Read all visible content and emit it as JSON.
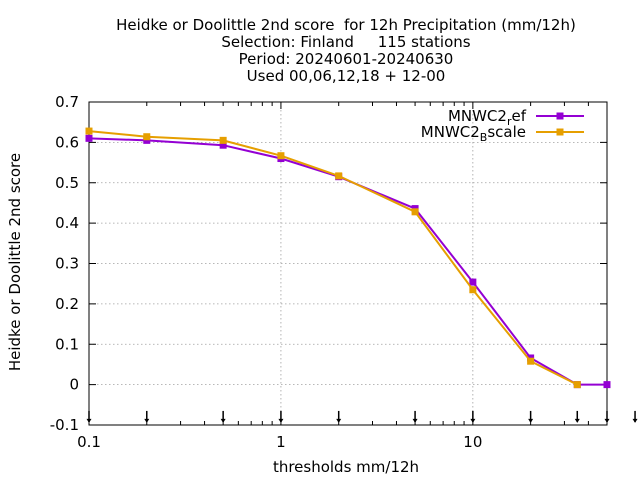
{
  "chart_data": {
    "type": "line",
    "title_lines": [
      "Heidke or Doolittle 2nd score  for 12h Precipitation (mm/12h)",
      "Selection: Finland     115 stations",
      "Period: 20240601-20240630",
      "Used 00,06,12,18 + 12-00"
    ],
    "xlabel": "thresholds mm/12h",
    "ylabel": "Heidke or Doolittle 2nd score",
    "xscale": "log",
    "xlim": [
      0.1,
      50
    ],
    "ylim": [
      -0.1,
      0.7
    ],
    "x_ticks": [
      {
        "value": 0.1,
        "label": "0.1"
      },
      {
        "value": 1,
        "label": "1"
      },
      {
        "value": 10,
        "label": "10"
      }
    ],
    "y_ticks": [
      {
        "value": -0.1,
        "label": "-0.1"
      },
      {
        "value": 0,
        "label": "0"
      },
      {
        "value": 0.1,
        "label": "0.1"
      },
      {
        "value": 0.2,
        "label": "0.2"
      },
      {
        "value": 0.3,
        "label": "0.3"
      },
      {
        "value": 0.4,
        "label": "0.4"
      },
      {
        "value": 0.5,
        "label": "0.5"
      },
      {
        "value": 0.6,
        "label": "0.6"
      },
      {
        "value": 0.7,
        "label": "0.7"
      }
    ],
    "grid": true,
    "legend_position": "top-right",
    "threshold_markers": [
      0.1,
      0.2,
      0.5,
      1,
      2,
      5,
      10,
      20,
      35,
      50,
      70
    ],
    "series": [
      {
        "name_main": "MNWC2",
        "name_sub": "r",
        "name_rest": "ef",
        "color": "#9400d3",
        "x": [
          0.1,
          0.2,
          0.5,
          1,
          2,
          5,
          10,
          20,
          35,
          50
        ],
        "y": [
          0.61,
          0.605,
          0.593,
          0.56,
          0.515,
          0.436,
          0.254,
          0.066,
          0.0,
          0.0
        ]
      },
      {
        "name_main": "MNWC2",
        "name_sub": "B",
        "name_rest": "scale",
        "color": "#e69f00",
        "x": [
          0.1,
          0.2,
          0.5,
          1,
          2,
          5,
          10,
          20,
          35
        ],
        "y": [
          0.628,
          0.614,
          0.605,
          0.567,
          0.517,
          0.428,
          0.235,
          0.058,
          0.0
        ]
      }
    ]
  }
}
